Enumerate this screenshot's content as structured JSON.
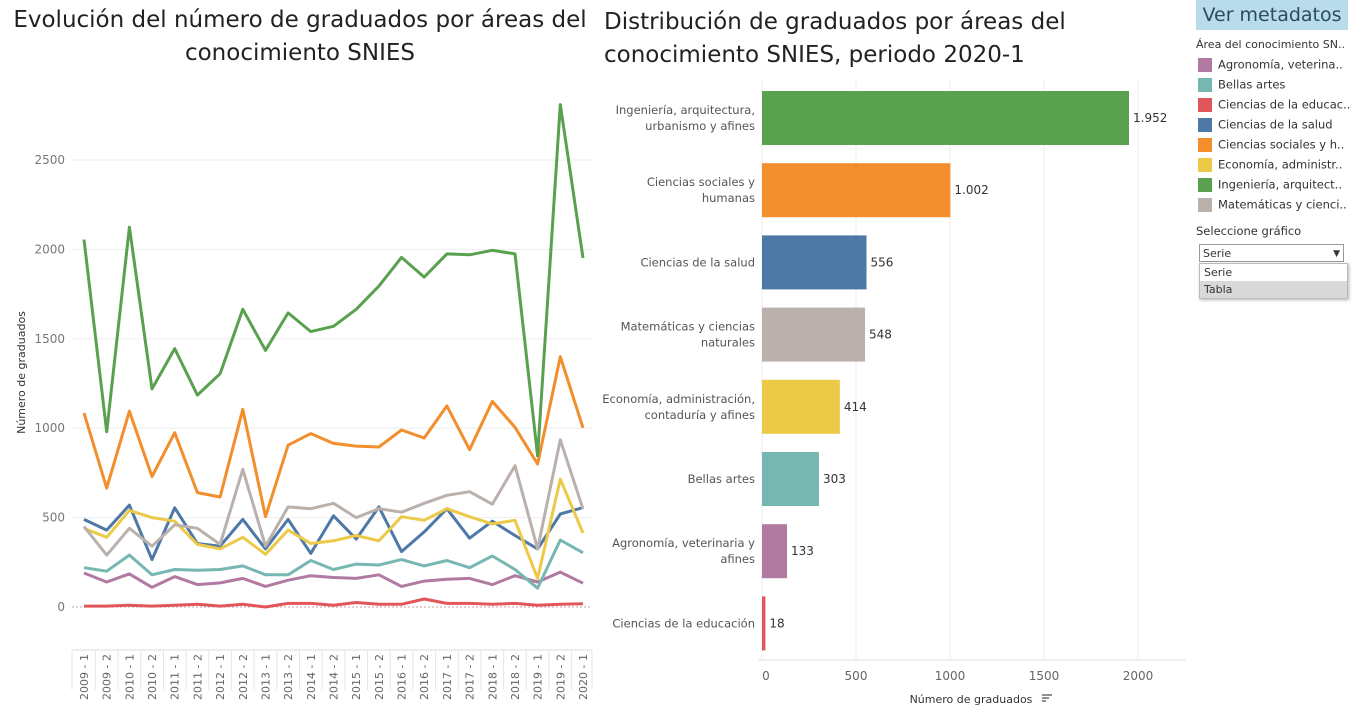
{
  "left_title": "Evolución del número de graduados por áreas del conocimiento SNIES",
  "right_title": "Distribución de graduados por áreas del conocimiento SNIES, periodo 2020-1",
  "metadata_button": "Ver metadatos",
  "legend": {
    "title": "Área del conocimiento SN..",
    "items": [
      {
        "label": "Agronomía, veterina..",
        "color": "#b07aa1"
      },
      {
        "label": "Bellas artes",
        "color": "#76b7b2"
      },
      {
        "label": "Ciencias de la educac..",
        "color": "#e15759"
      },
      {
        "label": "Ciencias de la salud",
        "color": "#4e79a7"
      },
      {
        "label": "Ciencias sociales y h..",
        "color": "#f28e2b"
      },
      {
        "label": "Economía, administr..",
        "color": "#edc948"
      },
      {
        "label": "Ingeniería, arquitect..",
        "color": "#59a14f"
      },
      {
        "label": "Matemáticas y cienci..",
        "color": "#bab0ac"
      }
    ]
  },
  "selector": {
    "title": "Seleccione gráfico",
    "value": "Serie",
    "options": [
      "Serie",
      "Tabla"
    ],
    "highlighted": "Tabla"
  },
  "chart_data": [
    {
      "type": "line",
      "title": "Evolución del número de graduados por áreas del conocimiento SNIES",
      "ylabel": "Número de graduados",
      "xlabel": "",
      "ylim": [
        -100,
        2900
      ],
      "yticks": [
        0,
        500,
        1000,
        1500,
        2000,
        2500
      ],
      "grid": true,
      "x": [
        "2009 - 1",
        "2009 - 2",
        "2010 - 1",
        "2010 - 2",
        "2011 - 1",
        "2011 - 2",
        "2012 - 1",
        "2012 - 2",
        "2013 - 1",
        "2013 - 2",
        "2014 - 1",
        "2014 - 2",
        "2015 - 1",
        "2015 - 2",
        "2016 - 1",
        "2016 - 2",
        "2017 - 1",
        "2017 - 2",
        "2018 - 1",
        "2018 - 2",
        "2019 - 1",
        "2019 - 2",
        "2020 - 1"
      ],
      "series": [
        {
          "name": "Agronomía, veterinaria y afines",
          "color": "#b07aa1",
          "values": [
            190,
            140,
            185,
            110,
            170,
            125,
            135,
            160,
            115,
            150,
            175,
            165,
            160,
            180,
            115,
            145,
            155,
            160,
            125,
            175,
            140,
            195,
            133
          ]
        },
        {
          "name": "Bellas artes",
          "color": "#76b7b2",
          "values": [
            220,
            200,
            290,
            180,
            210,
            205,
            210,
            230,
            180,
            180,
            260,
            210,
            240,
            235,
            265,
            230,
            260,
            220,
            285,
            210,
            105,
            375,
            303
          ]
        },
        {
          "name": "Ciencias de la educación",
          "color": "#e15759",
          "values": [
            5,
            5,
            10,
            5,
            10,
            15,
            5,
            15,
            0,
            20,
            20,
            10,
            25,
            15,
            15,
            45,
            20,
            20,
            15,
            20,
            10,
            15,
            18
          ]
        },
        {
          "name": "Ciencias de la salud",
          "color": "#4e79a7",
          "values": [
            490,
            430,
            570,
            265,
            555,
            355,
            340,
            490,
            325,
            490,
            300,
            510,
            380,
            560,
            310,
            420,
            550,
            385,
            480,
            400,
            325,
            520,
            556
          ]
        },
        {
          "name": "Ciencias sociales y humanas",
          "color": "#f28e2b",
          "values": [
            1085,
            665,
            1095,
            730,
            975,
            640,
            615,
            1105,
            505,
            905,
            970,
            915,
            900,
            895,
            990,
            945,
            1125,
            880,
            1150,
            1005,
            800,
            1400,
            1002
          ]
        },
        {
          "name": "Economía, administración, contaduría y afines",
          "color": "#edc948",
          "values": [
            440,
            390,
            540,
            500,
            480,
            350,
            325,
            390,
            295,
            430,
            355,
            370,
            400,
            370,
            505,
            485,
            550,
            505,
            465,
            485,
            160,
            715,
            414
          ]
        },
        {
          "name": "Ingeniería, arquitectura, urbanismo y afines",
          "color": "#59a14f",
          "values": [
            2055,
            980,
            2125,
            1220,
            1445,
            1185,
            1305,
            1665,
            1435,
            1645,
            1540,
            1570,
            1665,
            1795,
            1955,
            1845,
            1975,
            1970,
            1995,
            1975,
            845,
            2810,
            1952
          ]
        },
        {
          "name": "Matemáticas y ciencias naturales",
          "color": "#bab0ac",
          "values": [
            450,
            290,
            440,
            340,
            460,
            440,
            350,
            770,
            340,
            560,
            550,
            580,
            500,
            550,
            530,
            580,
            625,
            645,
            575,
            790,
            325,
            935,
            548
          ]
        }
      ]
    },
    {
      "type": "bar",
      "orientation": "horizontal",
      "title": "Distribución de graduados por áreas del conocimiento SNIES, periodo 2020-1",
      "xlabel": "Número de graduados",
      "xlim": [
        0,
        2250
      ],
      "xticks": [
        0,
        500,
        1000,
        1500,
        2000
      ],
      "categories": [
        {
          "line1": "Ingeniería, arquitectura,",
          "line2": "urbanismo y afines",
          "value": 1952,
          "label": "1.952",
          "color": "#59a14f"
        },
        {
          "line1": "Ciencias sociales y",
          "line2": "humanas",
          "value": 1002,
          "label": "1.002",
          "color": "#f28e2b"
        },
        {
          "line1": "Ciencias de la salud",
          "line2": "",
          "value": 556,
          "label": "556",
          "color": "#4e79a7"
        },
        {
          "line1": "Matemáticas y ciencias",
          "line2": "naturales",
          "value": 548,
          "label": "548",
          "color": "#bab0ac"
        },
        {
          "line1": "Economía, administración,",
          "line2": "contaduría y afines",
          "value": 414,
          "label": "414",
          "color": "#edc948"
        },
        {
          "line1": "Bellas artes",
          "line2": "",
          "value": 303,
          "label": "303",
          "color": "#76b7b2"
        },
        {
          "line1": "Agronomía, veterinaria y",
          "line2": "afines",
          "value": 133,
          "label": "133",
          "color": "#b07aa1"
        },
        {
          "line1": "Ciencias de la educación",
          "line2": "",
          "value": 18,
          "label": "18",
          "color": "#e15759"
        }
      ]
    }
  ]
}
